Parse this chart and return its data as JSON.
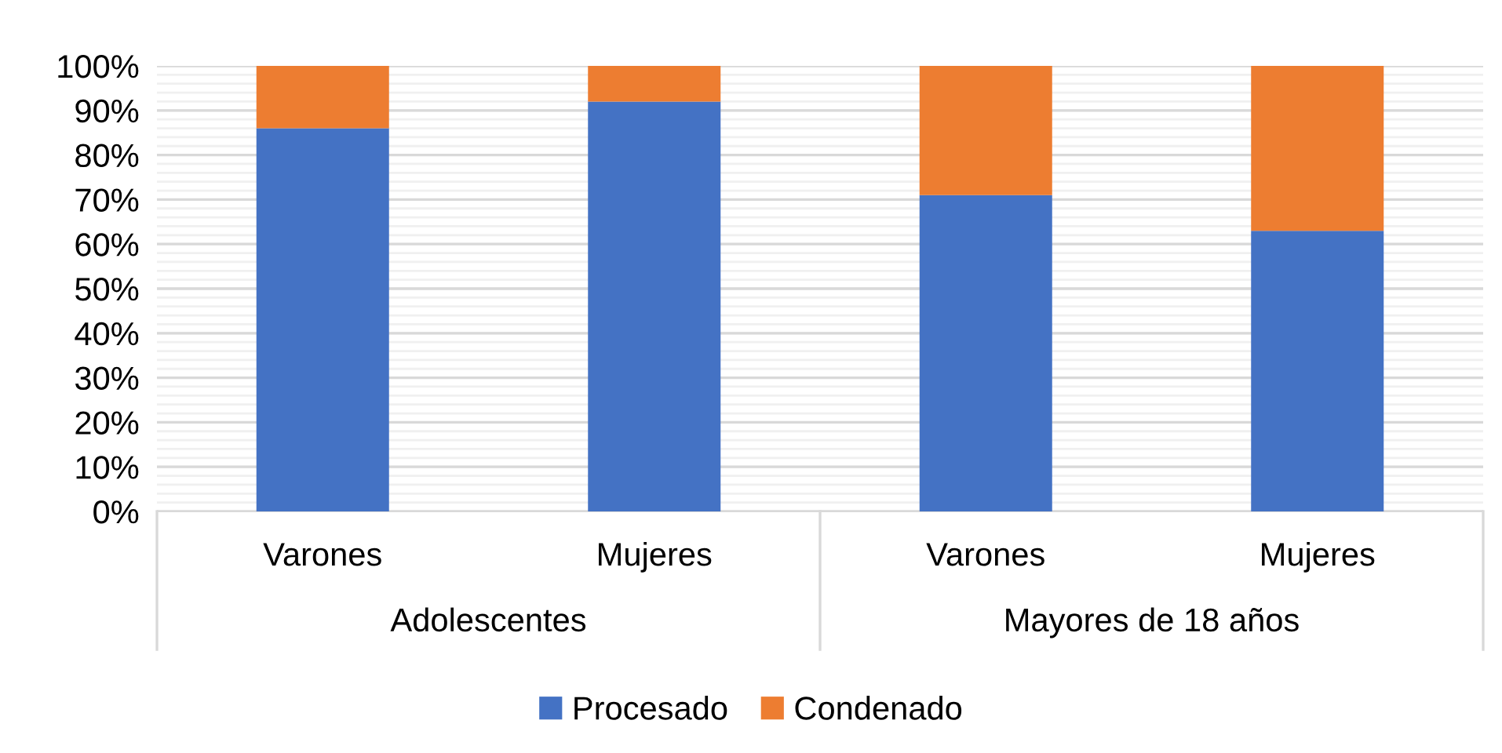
{
  "chart_data": {
    "type": "bar",
    "stacked": true,
    "categories": [
      "Varones",
      "Mujeres",
      "Varones",
      "Mujeres"
    ],
    "series": [
      {
        "name": "Procesado",
        "color": "#4472c4",
        "values": [
          86,
          92,
          71,
          63
        ]
      },
      {
        "name": "Condenado",
        "color": "#ed7d31",
        "values": [
          14,
          8,
          29,
          37
        ]
      }
    ],
    "annotations": [
      "Adolescentes",
      "Mayores de 18 años"
    ],
    "ylim": [
      0,
      100
    ],
    "yticks": [
      {
        "value": 0,
        "label": "0%"
      },
      {
        "value": 10,
        "label": "10%"
      },
      {
        "value": 20,
        "label": "20%"
      },
      {
        "value": 30,
        "label": "30%"
      },
      {
        "value": 40,
        "label": "40%"
      },
      {
        "value": 50,
        "label": "50%"
      },
      {
        "value": 60,
        "label": "60%"
      },
      {
        "value": 70,
        "label": "70%"
      },
      {
        "value": 80,
        "label": "80%"
      },
      {
        "value": 90,
        "label": "90%"
      },
      {
        "value": 100,
        "label": "100%"
      }
    ],
    "grid": "y",
    "legend": "bottom"
  }
}
